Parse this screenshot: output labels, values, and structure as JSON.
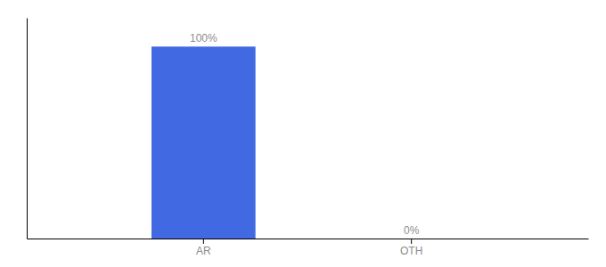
{
  "chart_data": {
    "type": "bar",
    "categories": [
      "AR",
      "OTH"
    ],
    "values": [
      100,
      0
    ],
    "value_labels": [
      "100%",
      "0%"
    ],
    "data_labels": true,
    "color": "#4169e1",
    "ylim": [
      0,
      115
    ],
    "tick_labels": "x"
  }
}
